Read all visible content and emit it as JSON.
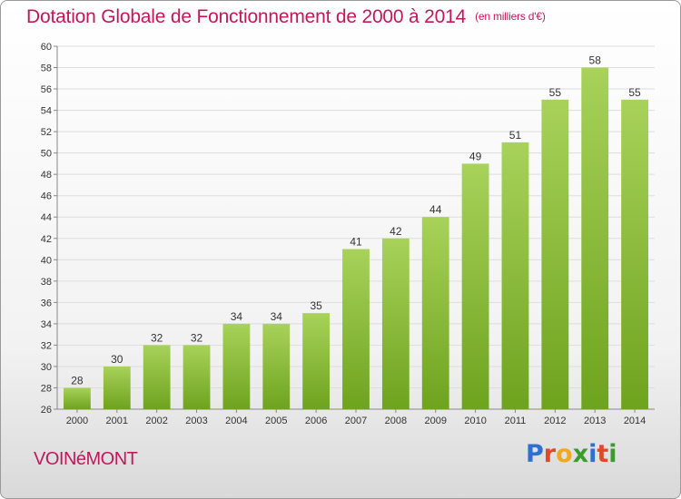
{
  "title": "Dotation Globale de Fonctionnement de 2000 à 2014",
  "subtitle": "(en milliers d'€)",
  "commune": "VOINéMONT",
  "logo": {
    "letters": [
      "P",
      "r",
      "o",
      "x",
      "i",
      "t",
      "i"
    ],
    "colors": [
      "#2f6fcf",
      "#e2462b",
      "#f1a820",
      "#3b9b2f",
      "#2f6fcf",
      "#e2462b",
      "#3b9b2f"
    ]
  },
  "colors": {
    "bar_light": "#a8d25a",
    "bar_dark": "#6ea31e",
    "text": "#c2185b"
  },
  "chart_data": {
    "type": "bar",
    "categories": [
      "2000",
      "2001",
      "2002",
      "2003",
      "2004",
      "2005",
      "2006",
      "2007",
      "2008",
      "2009",
      "2010",
      "2011",
      "2012",
      "2013",
      "2014"
    ],
    "values": [
      28,
      30,
      32,
      32,
      34,
      34,
      35,
      41,
      42,
      44,
      49,
      51,
      55,
      58,
      55
    ],
    "ylim": [
      26,
      60
    ],
    "yticks": [
      26,
      28,
      30,
      32,
      34,
      36,
      38,
      40,
      42,
      44,
      46,
      48,
      50,
      52,
      54,
      56,
      58,
      60
    ],
    "grid": true,
    "legend": "none"
  }
}
